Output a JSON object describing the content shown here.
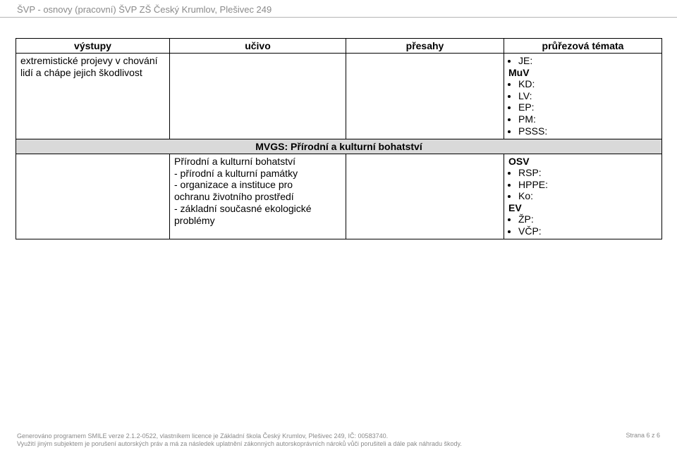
{
  "header": {
    "text": "ŠVP - osnovy (pracovní) ŠVP ZŠ Český Krumlov, Plešivec 249"
  },
  "table": {
    "headers": [
      "výstupy",
      "učivo",
      "přesahy",
      "průřezová témata"
    ],
    "row1": {
      "col1_line1": "extremistické projevy v chování",
      "col1_line2": "lidí a chápe jejich škodlivost",
      "col4_bullets": [
        "JE:"
      ],
      "col4_bold": "MuV",
      "col4_bullets2": [
        "KD:",
        "LV:",
        "EP:",
        "PM:",
        "PSSS:"
      ]
    },
    "subheader": "MVGS: Přírodní a kulturní bohatství",
    "row2": {
      "col2_line1": "Přírodní a kulturní bohatství",
      "col2_line2": "- přírodní a kulturní památky",
      "col2_line3": "- organizace a instituce pro",
      "col2_line4": "ochranu životního prostředí",
      "col2_line5": "- základní současné ekologické",
      "col2_line6": "problémy",
      "col4_bold1": "OSV",
      "col4_bullets1": [
        "RSP:",
        "HPPE:",
        "Ko:"
      ],
      "col4_bold2": "EV",
      "col4_bullets2": [
        "ŽP:",
        "VČP:"
      ]
    }
  },
  "footer": {
    "line1": "Generováno programem SMILE verze 2.1.2-0522, vlastníkem licence je Základní škola Český Krumlov, Plešivec 249, IČ: 00583740.",
    "line2": "Využití jiným subjektem je porušení autorských práv a má za následek uplatnění zákonných autorskoprávních nároků vůči porušiteli a dále pak náhradu škody.",
    "pagenum": "Strana 6 z 6"
  },
  "colors": {
    "header_text": "#8a8a8a",
    "hr": "#b5b5b5",
    "table_border": "#000000",
    "subhead_bg": "#d9d9d9",
    "body_bg": "#ffffff"
  }
}
